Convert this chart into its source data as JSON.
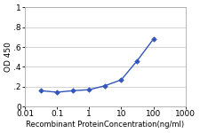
{
  "x": [
    0.031,
    0.1,
    0.31,
    1.0,
    3.1,
    10.0,
    31.0,
    100.0
  ],
  "y": [
    0.16,
    0.145,
    0.16,
    0.17,
    0.21,
    0.27,
    0.46,
    0.68
  ],
  "line_color": "#3355bb",
  "marker_color": "#3355bb",
  "marker": "D",
  "marker_size": 2.8,
  "line_width": 1.0,
  "xlabel": "Recombinant ProteinConcentration(ng/ml)",
  "ylabel": "OD 450",
  "xlim": [
    0.01,
    1000
  ],
  "ylim": [
    0,
    1.0
  ],
  "ytick_vals": [
    0,
    0.2,
    0.4,
    0.6,
    0.8,
    1.0
  ],
  "ytick_labels": [
    "0",
    ".2",
    ".4",
    ".6",
    ".8",
    "1"
  ],
  "xtick_vals": [
    0.01,
    0.1,
    1,
    10,
    100,
    1000
  ],
  "xtick_labels": [
    "0.01",
    "0.1",
    "1",
    "10",
    "100",
    "1000"
  ],
  "xlabel_fontsize": 6.0,
  "ylabel_fontsize": 6.5,
  "tick_fontsize": 6.5,
  "plot_bg_color": "#ffffff",
  "fig_bg_color": "#ffffff",
  "grid_color": "#cccccc",
  "spine_color": "#aaaaaa"
}
